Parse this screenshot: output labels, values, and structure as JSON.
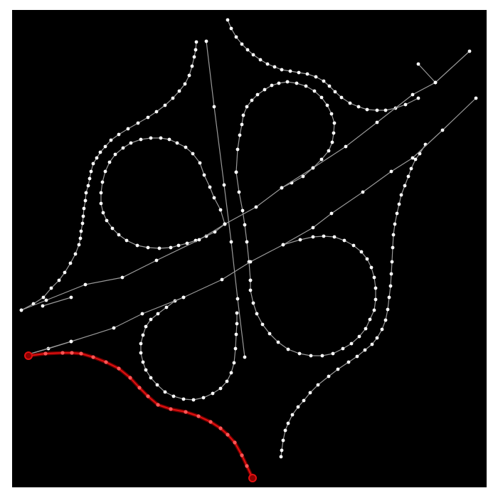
{
  "map": {
    "background_color": "#000000",
    "frame_color": "#ffffff",
    "road_color": "#9a9a9a",
    "node_color": "#ffffff",
    "highlight_color": "#e01010",
    "highlight_glow_color": "#8a0000"
  }
}
